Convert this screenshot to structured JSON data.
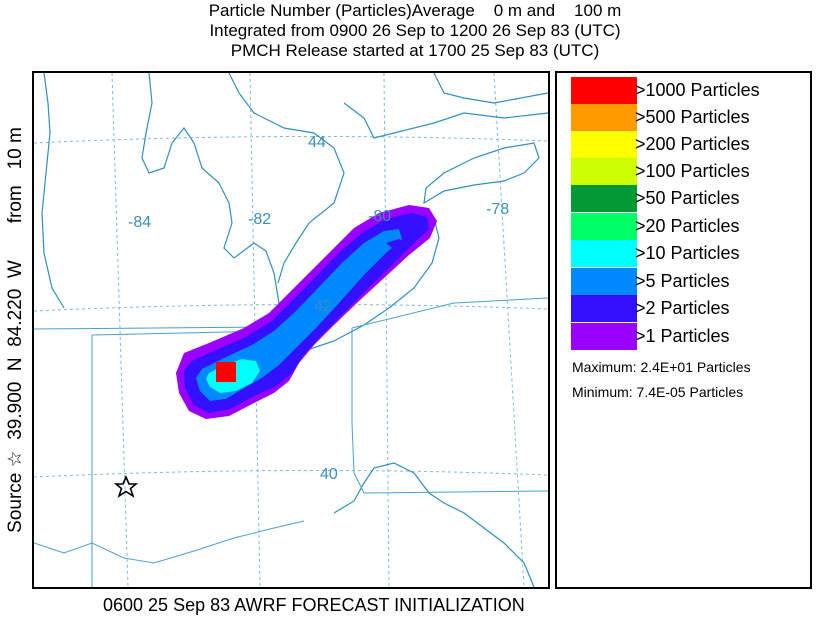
{
  "title": {
    "line1": "Particle Number (Particles)Average    0 m and    100 m",
    "line2": "Integrated from 0900 26 Sep to 1200 26 Sep 83 (UTC)",
    "line3": "PMCH Release started at 1700 25 Sep 83 (UTC)"
  },
  "side_label": "Source ☆  39.900  N  84.220  W       from   10 m",
  "map": {
    "lon_labels": [
      "-84",
      "-82",
      "-80",
      "-78"
    ],
    "lat_labels": [
      "44",
      "42",
      "40"
    ],
    "source_marker": "star-icon",
    "colors": {
      "grid": "#7fb8e0",
      "boundary": "#2f8fbf",
      "state_lines": "#4a9fcf"
    }
  },
  "legend": {
    "items": [
      {
        "label": ">1000 Particles",
        "color": "#ff0000"
      },
      {
        "label": ">500 Particles",
        "color": "#ff9900"
      },
      {
        "label": ">200 Particles",
        "color": "#ffff00"
      },
      {
        "label": ">100 Particles",
        "color": "#ccff00"
      },
      {
        "label": ">50 Particles",
        "color": "#009933"
      },
      {
        "label": ">20 Particles",
        "color": "#00ff66"
      },
      {
        "label": ">10 Particles",
        "color": "#00ffff"
      },
      {
        "label": ">5 Particles",
        "color": "#0088ff"
      },
      {
        "label": ">2 Particles",
        "color": "#3311ff"
      },
      {
        "label": ">1 Particles",
        "color": "#9900ff"
      }
    ],
    "maximum": "Maximum: 2.4E+01 Particles",
    "minimum": "Minimum: 7.4E-05 Particles"
  },
  "footer": "0600 25 Sep 83 AWRF FORECAST INITIALIZATION"
}
